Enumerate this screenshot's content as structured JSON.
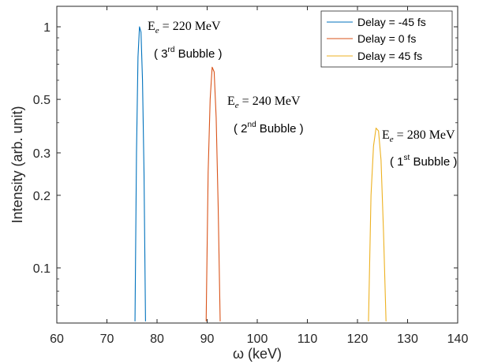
{
  "chart_data": {
    "type": "line",
    "title": "",
    "xlabel": "ω (keV)",
    "ylabel": "Intensity (arb. unit)",
    "xlim": [
      60,
      140
    ],
    "ylim": [
      0.06,
      1.2
    ],
    "y_scale": "log",
    "grid": false,
    "legend_position": "top-right",
    "x_ticks": [
      60,
      70,
      80,
      90,
      100,
      110,
      120,
      130,
      140
    ],
    "y_ticks": [
      0.1,
      0.2,
      0.3,
      0.5,
      1
    ],
    "x_tick_labels": [
      "60",
      "70",
      "80",
      "90",
      "100",
      "110",
      "120",
      "130",
      "140"
    ],
    "y_tick_labels": [
      "0.1",
      "0.2",
      "0.3",
      "0.5",
      "1"
    ],
    "series": [
      {
        "name": "Delay  = -45 fs",
        "color": "#0072BD",
        "x": [
          75.6,
          75.9,
          76.2,
          76.5,
          76.8,
          77.1,
          77.4,
          77.7
        ],
        "y": [
          0.06,
          0.3,
          0.75,
          1.0,
          0.95,
          0.6,
          0.25,
          0.06
        ]
      },
      {
        "name": "Delay  = 0 fs",
        "color": "#D95319",
        "x": [
          89.8,
          90.2,
          90.6,
          91.0,
          91.4,
          91.8,
          92.2,
          92.6
        ],
        "y": [
          0.06,
          0.25,
          0.5,
          0.68,
          0.65,
          0.42,
          0.18,
          0.06
        ]
      },
      {
        "name": "Delay  = 45 fs",
        "color": "#EDB120",
        "x": [
          122.2,
          122.7,
          123.2,
          123.7,
          124.2,
          124.7,
          125.2,
          125.7
        ],
        "y": [
          0.06,
          0.2,
          0.32,
          0.38,
          0.37,
          0.28,
          0.14,
          0.06
        ]
      }
    ],
    "annotations": [
      {
        "base": "E",
        "sub": "e",
        "rest": " = 220 MeV",
        "bubble_pre": "( 3",
        "bubble_sup": "rd",
        "bubble_post": " Bubble )"
      },
      {
        "base": "E",
        "sub": "e",
        "rest": " = 240 MeV",
        "bubble_pre": "( 2",
        "bubble_sup": "nd",
        "bubble_post": " Bubble )"
      },
      {
        "base": "E",
        "sub": "e",
        "rest": " = 280 MeV",
        "bubble_pre": "( 1",
        "bubble_sup": "st",
        "bubble_post": " Bubble )"
      }
    ]
  }
}
